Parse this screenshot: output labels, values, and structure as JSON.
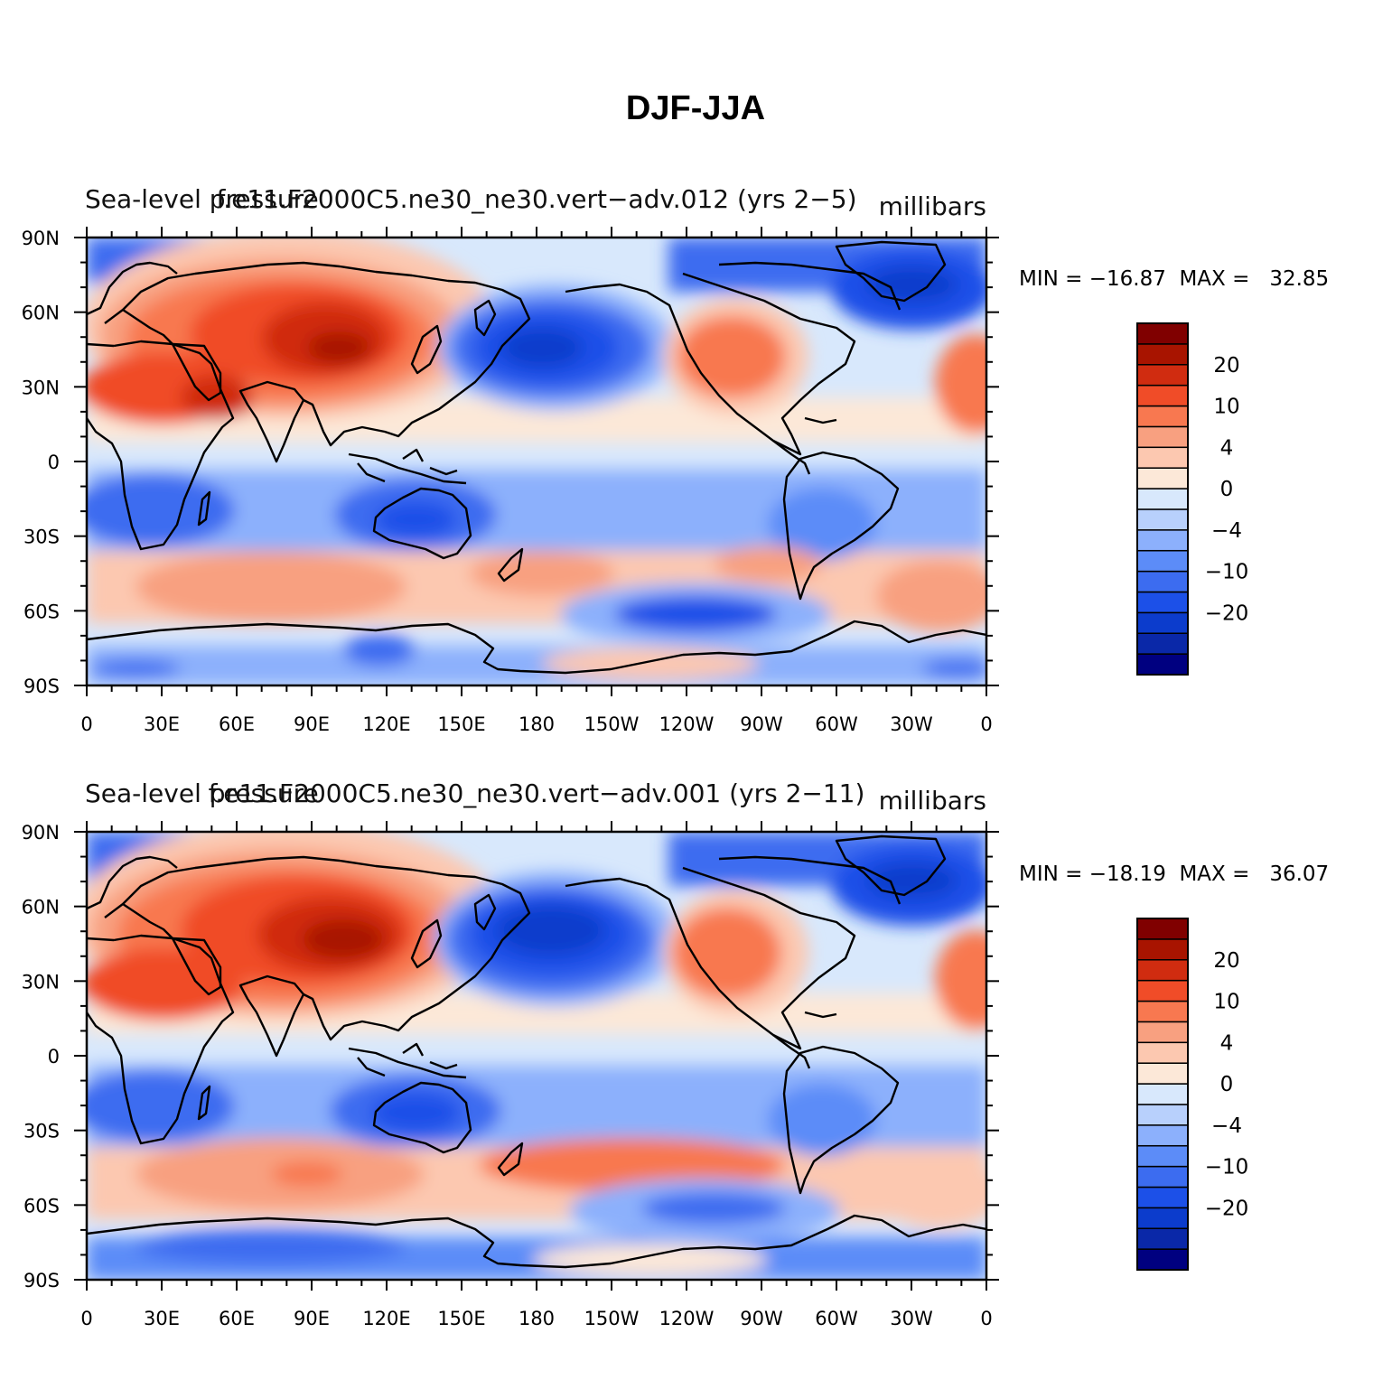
{
  "title": "DJF-JJA",
  "colors": {
    "levels": [
      "#000080",
      "#0a28a8",
      "#0c3ccc",
      "#1c50e8",
      "#3c6cf0",
      "#5c8cf8",
      "#8cb0fc",
      "#b8d0fc",
      "#d8e8fc",
      "#fce8d8",
      "#fcc8b0",
      "#f8a080",
      "#f87850",
      "#f04c28",
      "#d02c10",
      "#a81400",
      "#800000"
    ]
  },
  "colorbar": {
    "labels": [
      "20",
      "10",
      "4",
      "0",
      "−4",
      "−10",
      "−20"
    ]
  },
  "axes": {
    "x_ticks": [
      "0",
      "30E",
      "60E",
      "90E",
      "120E",
      "150E",
      "180",
      "150W",
      "120W",
      "90W",
      "60W",
      "30W",
      "0"
    ],
    "y_ticks": [
      "90N",
      "60N",
      "30N",
      "0",
      "30S",
      "60S",
      "90S"
    ]
  },
  "panels": [
    {
      "left_label": "Sea-level pressure",
      "center_label": "f.e11.F2000C5.ne30_ne30.vert−adv.012 (yrs 2−5)",
      "units": "millibars",
      "stats": "MIN = −16.87  MAX =   32.85"
    },
    {
      "left_label": "Sea-level pressure",
      "center_label": "f.e11.F2000C5.ne30_ne30.vert−adv.001 (yrs 2−11)",
      "units": "millibars",
      "stats": "MIN = −18.19  MAX =   36.07"
    }
  ]
}
